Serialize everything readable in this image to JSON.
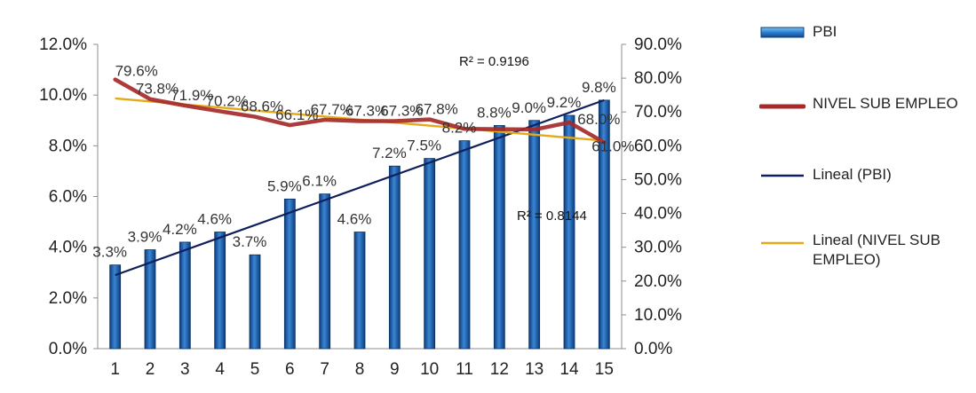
{
  "chart_data": {
    "type": "bar",
    "categories": [
      "1",
      "2",
      "3",
      "4",
      "5",
      "6",
      "7",
      "8",
      "9",
      "10",
      "11",
      "12",
      "13",
      "14",
      "15"
    ],
    "series": [
      {
        "name": "PBI",
        "kind": "bar",
        "axis": "left",
        "values": [
          3.3,
          3.9,
          4.2,
          4.6,
          3.7,
          5.9,
          6.1,
          4.6,
          7.2,
          7.5,
          8.2,
          8.8,
          9.0,
          9.2,
          9.8
        ],
        "labels": [
          "3.3%",
          "3.9%",
          "4.2%",
          "4.6%",
          "3.7%",
          "5.9%",
          "6.1%",
          "4.6%",
          "7.2%",
          "7.5%",
          "8.2%",
          "8.8%",
          "9.0%",
          "9.2%",
          "9.8%"
        ],
        "color": "#1f5ea8"
      },
      {
        "name": "NIVEL SUB EMPLEO",
        "kind": "line",
        "axis": "right",
        "values": [
          79.6,
          73.8,
          71.9,
          70.2,
          68.6,
          66.1,
          67.7,
          67.3,
          67.3,
          67.8,
          65.0,
          64.9,
          64.8,
          66.9,
          61.0
        ],
        "labels": [
          "79.6%",
          "73.8%",
          "71.9%",
          "70.2%",
          "68.6%",
          "66.1%",
          "67.7%",
          "67.3%",
          "67.3%",
          "67.8%",
          "",
          "",
          "",
          "",
          "61.0%"
        ],
        "color": "#a52a2a"
      }
    ],
    "trendlines": [
      {
        "name": "Lineal (PBI)",
        "axis": "left",
        "start": 2.9,
        "end": 9.8,
        "color": "#0f1f5c",
        "r2": "R² = 0.9196"
      },
      {
        "name": "Lineal (NIVEL SUB EMPLEO)",
        "axis": "right",
        "start": 74.0,
        "end": 61.5,
        "color": "#e6a817",
        "r2": "R² = 0.8144"
      }
    ],
    "left_axis": {
      "min": 0,
      "max": 12,
      "step": 2,
      "format": "%.1f%"
    },
    "right_axis": {
      "min": 0,
      "max": 90,
      "step": 10,
      "format": "%.1f%"
    },
    "extra_labels": [
      {
        "text": "68.0%",
        "category": 15,
        "axis": "right",
        "value": 68.0
      }
    ],
    "legend_position": "right",
    "grid": false
  },
  "legend": {
    "pbi": "PBI",
    "subempleo": "NIVEL SUB EMPLEO",
    "lineal_pbi": "Lineal (PBI)",
    "lineal_subempleo": "Lineal (NIVEL SUB EMPLEO)"
  }
}
